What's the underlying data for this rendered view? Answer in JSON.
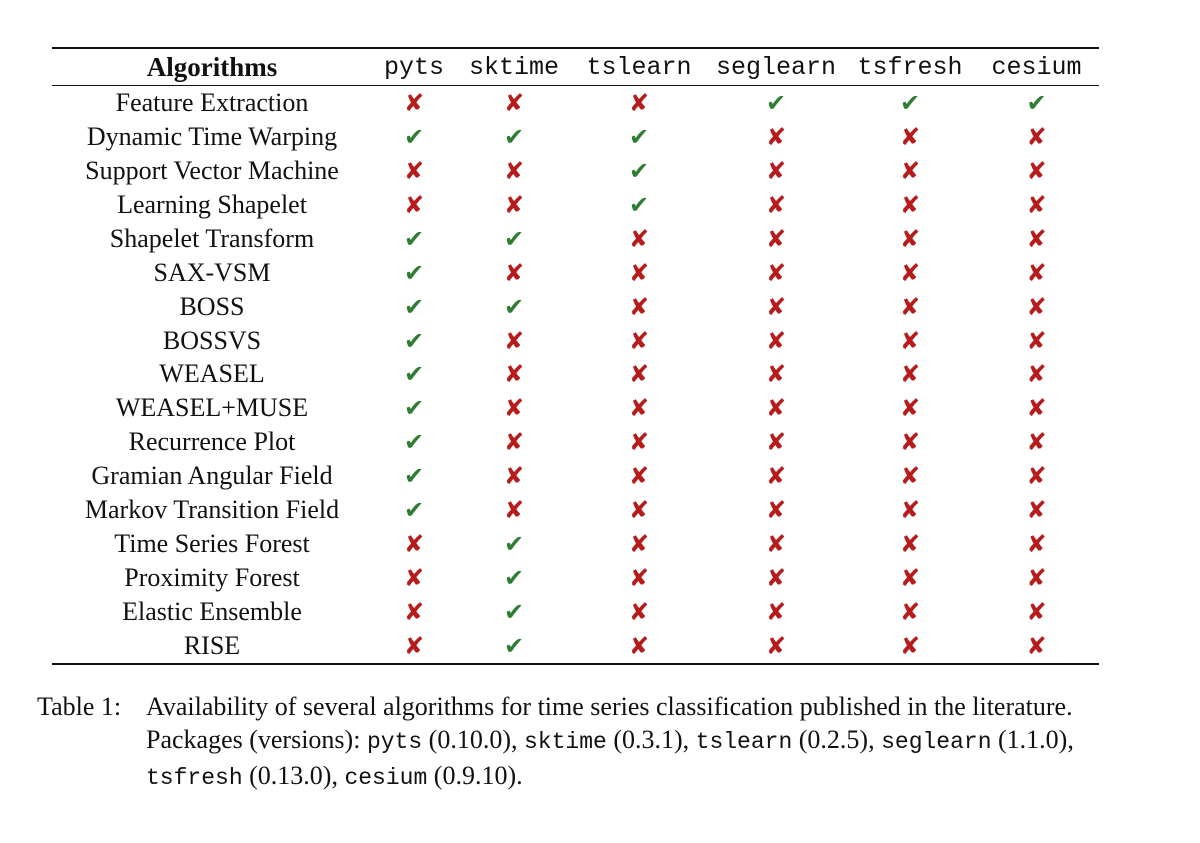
{
  "table": {
    "header": [
      "Algorithms",
      "pyts",
      "sktime",
      "tslearn",
      "seglearn",
      "tsfresh",
      "cesium"
    ],
    "colors": {
      "yes": "#2e7d32",
      "no": "#b71c1c"
    },
    "symbols": {
      "yes": "✔",
      "no": "✘"
    },
    "rows": [
      {
        "name": "Feature Extraction",
        "marks": [
          "no",
          "no",
          "no",
          "yes",
          "yes",
          "yes"
        ]
      },
      {
        "name": "Dynamic Time Warping",
        "marks": [
          "yes",
          "yes",
          "yes",
          "no",
          "no",
          "no"
        ]
      },
      {
        "name": "Support Vector Machine",
        "marks": [
          "no",
          "no",
          "yes",
          "no",
          "no",
          "no"
        ]
      },
      {
        "name": "Learning Shapelet",
        "marks": [
          "no",
          "no",
          "yes",
          "no",
          "no",
          "no"
        ]
      },
      {
        "name": "Shapelet Transform",
        "marks": [
          "yes",
          "yes",
          "no",
          "no",
          "no",
          "no"
        ]
      },
      {
        "name": "SAX-VSM",
        "marks": [
          "yes",
          "no",
          "no",
          "no",
          "no",
          "no"
        ]
      },
      {
        "name": "BOSS",
        "marks": [
          "yes",
          "yes",
          "no",
          "no",
          "no",
          "no"
        ]
      },
      {
        "name": "BOSSVS",
        "marks": [
          "yes",
          "no",
          "no",
          "no",
          "no",
          "no"
        ]
      },
      {
        "name": "WEASEL",
        "marks": [
          "yes",
          "no",
          "no",
          "no",
          "no",
          "no"
        ]
      },
      {
        "name": "WEASEL+MUSE",
        "marks": [
          "yes",
          "no",
          "no",
          "no",
          "no",
          "no"
        ]
      },
      {
        "name": "Recurrence Plot",
        "marks": [
          "yes",
          "no",
          "no",
          "no",
          "no",
          "no"
        ]
      },
      {
        "name": "Gramian Angular Field",
        "marks": [
          "yes",
          "no",
          "no",
          "no",
          "no",
          "no"
        ]
      },
      {
        "name": "Markov Transition Field",
        "marks": [
          "yes",
          "no",
          "no",
          "no",
          "no",
          "no"
        ]
      },
      {
        "name": "Time Series Forest",
        "marks": [
          "no",
          "yes",
          "no",
          "no",
          "no",
          "no"
        ]
      },
      {
        "name": "Proximity Forest",
        "marks": [
          "no",
          "yes",
          "no",
          "no",
          "no",
          "no"
        ]
      },
      {
        "name": "Elastic Ensemble",
        "marks": [
          "no",
          "yes",
          "no",
          "no",
          "no",
          "no"
        ]
      },
      {
        "name": "RISE",
        "marks": [
          "no",
          "yes",
          "no",
          "no",
          "no",
          "no"
        ]
      }
    ]
  },
  "caption": {
    "label": "Table 1:",
    "text_1": "Availability of several algorithms for time series classification published in the literature. Packages (versions): ",
    "pkg_1": "pyts",
    "ver_1": " (0.10.0), ",
    "pkg_2": "sktime",
    "ver_2": " (0.3.1), ",
    "pkg_3": "tslearn",
    "ver_3": " (0.2.5), ",
    "pkg_4": "seglearn",
    "ver_4": " (1.1.0), ",
    "pkg_5": "tsfresh",
    "ver_5": " (0.13.0), ",
    "pkg_6": "cesium",
    "ver_6": " (0.9.10)."
  }
}
